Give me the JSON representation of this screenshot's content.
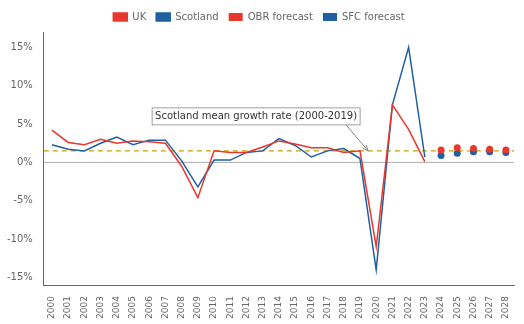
{
  "chart_data": {
    "type": "line",
    "series": [
      {
        "name": "UK",
        "type": "line",
        "color": "#e8382d",
        "line_style": "solid",
        "x": [
          2000,
          2001,
          2002,
          2003,
          2004,
          2005,
          2006,
          2007,
          2008,
          2009,
          2010,
          2011,
          2012,
          2013,
          2014,
          2015,
          2016,
          2017,
          2018,
          2019,
          2020,
          2021,
          2022,
          2023
        ],
        "values": [
          4.2,
          2.6,
          2.3,
          3.0,
          2.5,
          2.8,
          2.7,
          2.5,
          -0.5,
          -4.6,
          1.5,
          1.3,
          1.3,
          2.0,
          2.8,
          2.4,
          1.9,
          1.9,
          1.3,
          1.5,
          -11.0,
          7.5,
          4.3,
          0.1
        ]
      },
      {
        "name": "Scotland",
        "type": "line",
        "color": "#2060a0",
        "line_style": "solid",
        "x": [
          2000,
          2001,
          2002,
          2003,
          2004,
          2005,
          2006,
          2007,
          2008,
          2009,
          2010,
          2011,
          2012,
          2013,
          2014,
          2015,
          2016,
          2017,
          2018,
          2019,
          2020,
          2021,
          2022,
          2023
        ],
        "values": [
          2.3,
          1.7,
          1.5,
          2.5,
          3.3,
          2.3,
          2.9,
          2.9,
          0.2,
          -3.2,
          0.3,
          0.3,
          1.3,
          1.5,
          3.1,
          2.2,
          0.7,
          1.5,
          1.8,
          0.5,
          -14.0,
          7.5,
          15.0,
          0.7
        ]
      },
      {
        "name": "OBR forecast",
        "type": "scatter",
        "color": "#e8382d",
        "marker": "circle",
        "x": [
          2024,
          2025,
          2026,
          2027,
          2028
        ],
        "values": [
          1.6,
          1.9,
          1.8,
          1.7,
          1.6
        ]
      },
      {
        "name": "SFC forecast",
        "type": "scatter",
        "color": "#2060a0",
        "marker": "circle",
        "x": [
          2024,
          2025,
          2026,
          2027,
          2028
        ],
        "values": [
          0.9,
          1.2,
          1.4,
          1.4,
          1.3
        ]
      }
    ],
    "hlines": [
      {
        "value": 1.5,
        "color": "#c8a000",
        "line_style": "dashed"
      },
      {
        "value": 0,
        "color": "#999999",
        "line_style": "solid"
      }
    ],
    "annotations": [
      {
        "text": "Scotland mean growth rate (2000-2019)",
        "x": 2019.5,
        "y": 1.5,
        "color": "#888888"
      }
    ],
    "xlim": [
      1999.5,
      2028.5
    ],
    "xticks": [
      2000,
      2001,
      2002,
      2003,
      2004,
      2005,
      2006,
      2007,
      2008,
      2009,
      2010,
      2011,
      2012,
      2013,
      2014,
      2015,
      2016,
      2017,
      2018,
      2019,
      2020,
      2021,
      2022,
      2023,
      2024,
      2025,
      2026,
      2027,
      2028
    ],
    "ylim": [
      -16,
      17
    ],
    "yticks": [
      {
        "value": -15,
        "label": "-15%"
      },
      {
        "value": -10,
        "label": "-10%"
      },
      {
        "value": -5,
        "label": "-5%"
      },
      {
        "value": 0,
        "label": "0%"
      },
      {
        "value": 5,
        "label": "5%"
      },
      {
        "value": 10,
        "label": "10%"
      },
      {
        "value": 15,
        "label": "15%"
      }
    ],
    "grid": false,
    "legend": "top"
  }
}
